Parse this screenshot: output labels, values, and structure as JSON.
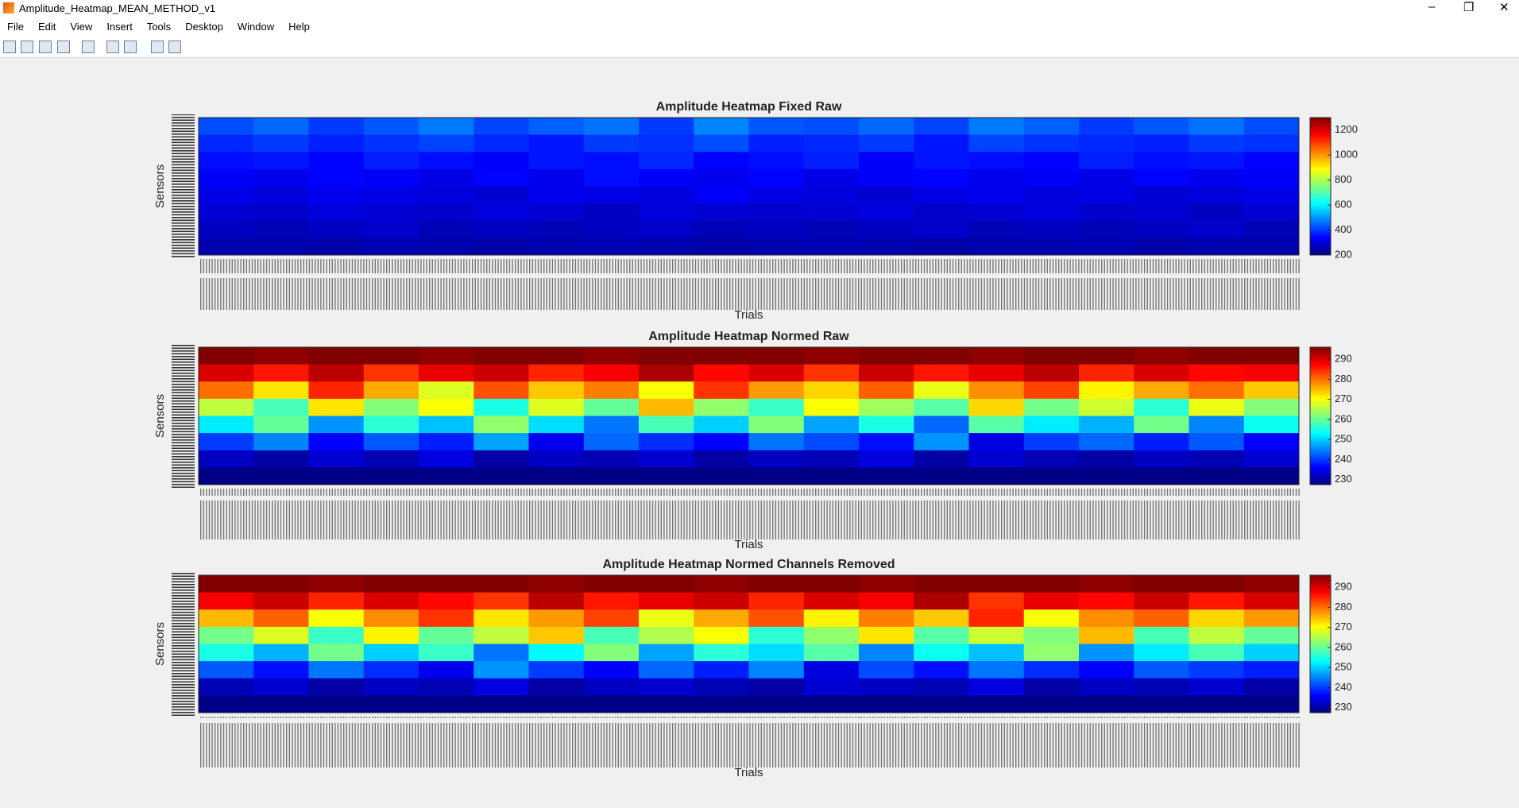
{
  "window": {
    "title": "Amplitude_Heatmap_MEAN_METHOD_v1"
  },
  "menu": [
    "File",
    "Edit",
    "View",
    "Insert",
    "Tools",
    "Desktop",
    "Window",
    "Help"
  ],
  "chart_data": [
    {
      "type": "heatmap",
      "title": "Amplitude Heatmap Fixed Raw",
      "xlabel": "Trials",
      "ylabel": "Sensors",
      "colormap": "jet",
      "clim": [
        200,
        1300
      ],
      "cticks": [
        200,
        400,
        600,
        800,
        1000,
        1200
      ],
      "z": [
        [
          420,
          450,
          400,
          430,
          470,
          410,
          440,
          460,
          400,
          480,
          430,
          420,
          450,
          410,
          470,
          440,
          400,
          430,
          460,
          420
        ],
        [
          380,
          400,
          370,
          390,
          410,
          380,
          360,
          400,
          390,
          420,
          370,
          380,
          400,
          360,
          410,
          390,
          380,
          370,
          400,
          390
        ],
        [
          350,
          360,
          340,
          370,
          350,
          330,
          360,
          350,
          380,
          340,
          350,
          370,
          330,
          360,
          350,
          340,
          370,
          350,
          360,
          340
        ],
        [
          330,
          320,
          340,
          330,
          310,
          340,
          320,
          350,
          330,
          320,
          340,
          310,
          330,
          340,
          320,
          330,
          310,
          340,
          320,
          330
        ],
        [
          310,
          300,
          320,
          310,
          300,
          290,
          320,
          310,
          300,
          330,
          310,
          300,
          290,
          310,
          320,
          300,
          310,
          290,
          300,
          310
        ],
        [
          290,
          280,
          300,
          290,
          280,
          300,
          290,
          270,
          300,
          290,
          280,
          290,
          300,
          280,
          290,
          300,
          280,
          290,
          270,
          290
        ],
        [
          270,
          260,
          270,
          280,
          260,
          270,
          260,
          270,
          280,
          260,
          270,
          260,
          270,
          280,
          260,
          270,
          260,
          270,
          280,
          260
        ],
        [
          250,
          250,
          245,
          255,
          250,
          245,
          250,
          255,
          250,
          245,
          250,
          255,
          250,
          245,
          250,
          250,
          255,
          245,
          250,
          250
        ]
      ]
    },
    {
      "type": "heatmap",
      "title": "Amplitude Heatmap Normed Raw",
      "xlabel": "Trials",
      "ylabel": "Sensors",
      "colormap": "jet",
      "clim": [
        227.5,
        296
      ],
      "cticks": [
        230,
        240,
        250,
        260,
        270,
        280,
        290
      ],
      "z": [
        [
          296,
          295,
          296,
          296,
          295,
          296,
          296,
          295,
          296,
          296,
          296,
          295,
          296,
          296,
          295,
          296,
          296,
          295,
          296,
          296
        ],
        [
          290,
          286,
          292,
          284,
          289,
          291,
          285,
          288,
          293,
          287,
          290,
          284,
          291,
          286,
          289,
          292,
          285,
          290,
          287,
          288
        ],
        [
          280,
          272,
          285,
          276,
          268,
          282,
          274,
          279,
          270,
          284,
          277,
          273,
          281,
          269,
          278,
          283,
          271,
          276,
          280,
          274
        ],
        [
          266,
          258,
          272,
          262,
          270,
          255,
          268,
          260,
          275,
          263,
          257,
          270,
          264,
          259,
          273,
          261,
          267,
          256,
          269,
          262
        ],
        [
          252,
          260,
          246,
          256,
          249,
          263,
          251,
          244,
          258,
          250,
          262,
          247,
          255,
          243,
          259,
          252,
          248,
          261,
          245,
          254
        ],
        [
          240,
          245,
          236,
          242,
          238,
          247,
          235,
          243,
          239,
          236,
          244,
          241,
          237,
          246,
          234,
          240,
          243,
          238,
          242,
          236
        ],
        [
          232,
          230,
          233,
          231,
          234,
          230,
          232,
          231,
          233,
          230,
          232,
          231,
          234,
          230,
          233,
          231,
          230,
          232,
          231,
          233
        ],
        [
          228,
          228,
          228,
          228,
          228,
          228,
          228,
          228,
          228,
          228,
          228,
          228,
          228,
          228,
          228,
          228,
          228,
          228,
          228,
          228
        ]
      ]
    },
    {
      "type": "heatmap",
      "title": "Amplitude Heatmap Normed Channels Removed",
      "xlabel": "Trials",
      "ylabel": "Sensors",
      "colormap": "jet",
      "clim": [
        227.5,
        296
      ],
      "cticks": [
        230,
        240,
        250,
        260,
        270,
        280,
        290
      ],
      "z": [
        [
          296,
          296,
          295,
          296,
          296,
          296,
          295,
          296,
          296,
          295,
          296,
          296,
          295,
          296,
          296,
          296,
          295,
          296,
          296,
          295
        ],
        [
          288,
          291,
          285,
          290,
          287,
          284,
          292,
          286,
          289,
          291,
          285,
          290,
          288,
          293,
          284,
          289,
          287,
          291,
          286,
          290
        ],
        [
          275,
          281,
          270,
          278,
          284,
          272,
          277,
          283,
          269,
          276,
          282,
          271,
          279,
          274,
          285,
          270,
          278,
          281,
          273,
          277
        ],
        [
          261,
          268,
          257,
          271,
          260,
          266,
          274,
          258,
          265,
          270,
          256,
          263,
          272,
          259,
          267,
          262,
          275,
          258,
          266,
          260
        ],
        [
          255,
          248,
          261,
          250,
          257,
          244,
          253,
          262,
          247,
          256,
          251,
          259,
          245,
          254,
          249,
          263,
          246,
          252,
          258,
          250
        ],
        [
          242,
          237,
          244,
          239,
          235,
          246,
          240,
          236,
          243,
          238,
          245,
          234,
          241,
          237,
          244,
          239,
          236,
          242,
          240,
          238
        ],
        [
          231,
          233,
          230,
          232,
          231,
          234,
          230,
          232,
          233,
          231,
          230,
          233,
          232,
          231,
          234,
          230,
          232,
          231,
          233,
          230
        ],
        [
          228,
          228,
          228,
          228,
          228,
          228,
          228,
          228,
          228,
          228,
          228,
          228,
          228,
          228,
          228,
          228,
          228,
          228,
          228,
          228
        ]
      ]
    }
  ]
}
